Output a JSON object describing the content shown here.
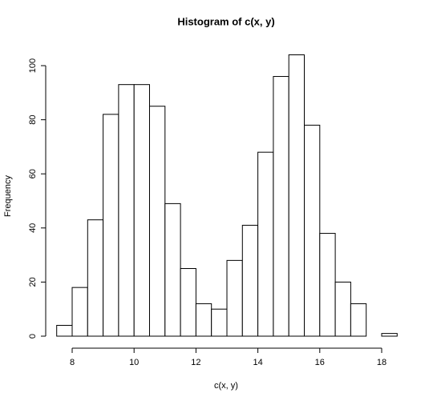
{
  "chart_data": {
    "type": "histogram",
    "title": "Histogram of c(x, y)",
    "x_label": "c(x, y)",
    "y_label": "Frequency",
    "bins": [
      7.5,
      8,
      8.5,
      9,
      9.5,
      10,
      10.5,
      11,
      11.5,
      12,
      12.5,
      13,
      13.5,
      14,
      14.5,
      15,
      15.5,
      16,
      16.5,
      17,
      17.5,
      18,
      18.5
    ],
    "values": [
      4,
      18,
      43,
      82,
      93,
      93,
      85,
      49,
      25,
      12,
      10,
      28,
      41,
      68,
      96,
      104,
      78,
      38,
      20,
      12,
      0,
      1
    ],
    "color": "#ffffff",
    "xlim": [
      7.5,
      18.5
    ],
    "xticks": [
      8,
      10,
      12,
      14,
      16,
      18
    ],
    "ylim": [
      0,
      104
    ],
    "yticks": [
      0,
      20,
      40,
      60,
      80,
      100
    ]
  }
}
